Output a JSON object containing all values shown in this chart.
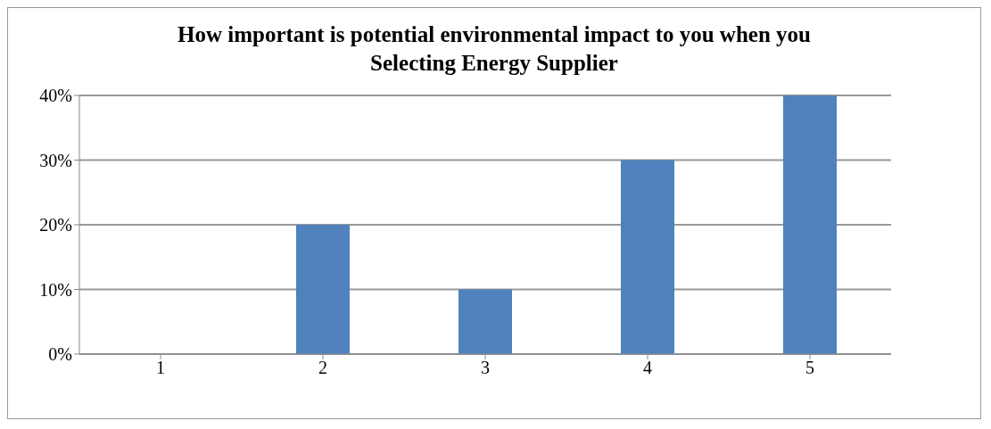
{
  "chart_data": {
    "type": "bar",
    "title": "How important is potential environmental impact to you when you Selecting Energy Supplier",
    "categories": [
      "1",
      "2",
      "3",
      "4",
      "5"
    ],
    "values": [
      0,
      20,
      10,
      30,
      40
    ],
    "color": "#4f81bd",
    "ylim": [
      0,
      40
    ],
    "yticks": [
      {
        "value": 0,
        "label": "0%"
      },
      {
        "value": 10,
        "label": "10%"
      },
      {
        "value": 20,
        "label": "20%"
      },
      {
        "value": 30,
        "label": "30%"
      },
      {
        "value": 40,
        "label": "40%"
      }
    ],
    "grid": "y"
  }
}
